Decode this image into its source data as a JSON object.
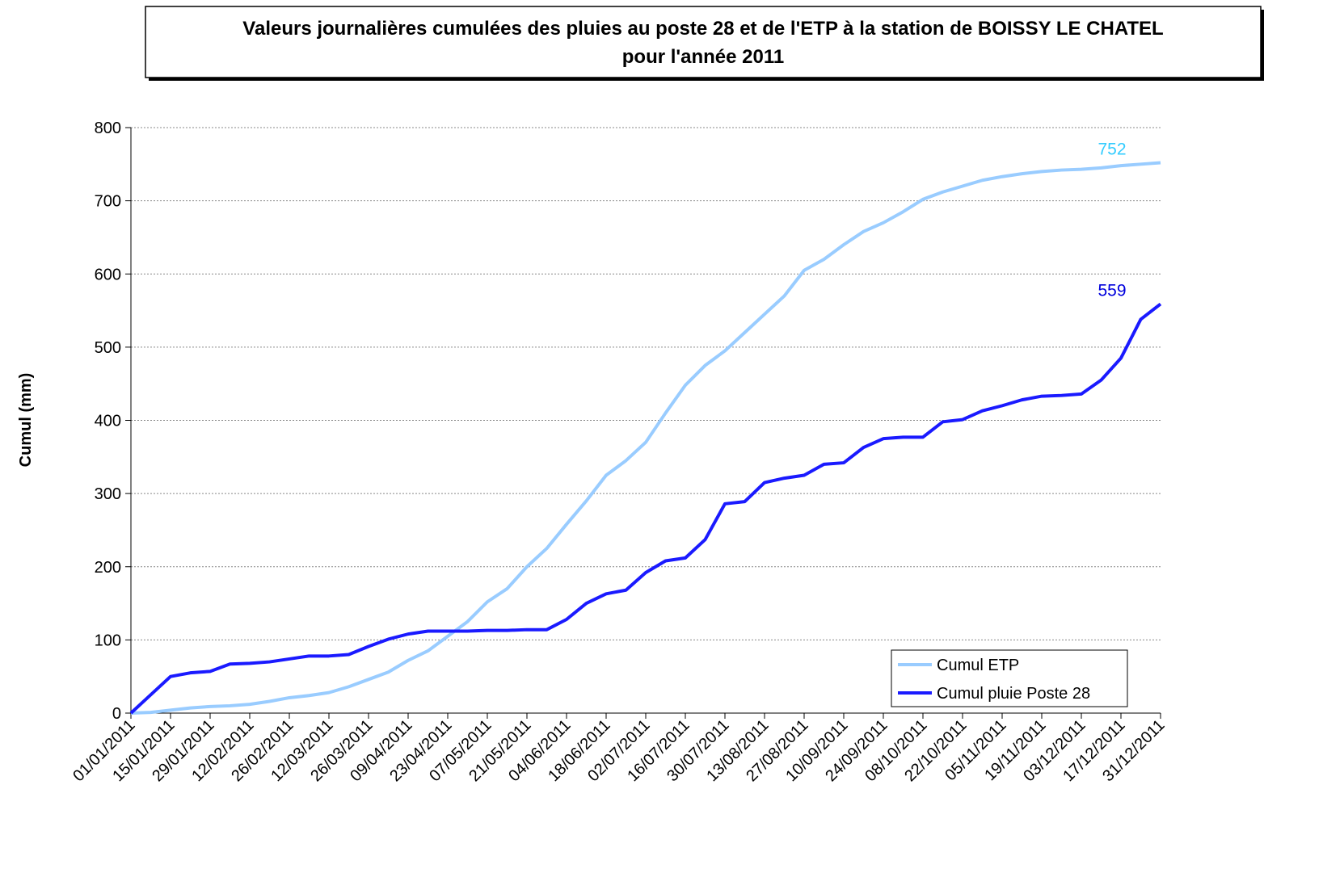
{
  "chart_data": {
    "type": "line",
    "title": [
      "Valeurs journalières cumulées des pluies au poste 28 et de l'ETP à la station de BOISSY LE CHATEL",
      "pour l'année 2011"
    ],
    "y_label": "Cumul (mm)",
    "x": [
      "01/01/2011",
      "08/01/2011",
      "15/01/2011",
      "22/01/2011",
      "29/01/2011",
      "05/02/2011",
      "12/02/2011",
      "19/02/2011",
      "26/02/2011",
      "05/03/2011",
      "12/03/2011",
      "19/03/2011",
      "26/03/2011",
      "02/04/2011",
      "09/04/2011",
      "16/04/2011",
      "23/04/2011",
      "30/04/2011",
      "07/05/2011",
      "14/05/2011",
      "21/05/2011",
      "28/05/2011",
      "04/06/2011",
      "11/06/2011",
      "18/06/2011",
      "25/06/2011",
      "02/07/2011",
      "09/07/2011",
      "16/07/2011",
      "23/07/2011",
      "30/07/2011",
      "06/08/2011",
      "13/08/2011",
      "20/08/2011",
      "27/08/2011",
      "03/09/2011",
      "10/09/2011",
      "17/09/2011",
      "24/09/2011",
      "01/10/2011",
      "08/10/2011",
      "15/10/2011",
      "22/10/2011",
      "29/10/2011",
      "05/11/2011",
      "12/11/2011",
      "19/11/2011",
      "26/11/2011",
      "03/12/2011",
      "10/12/2011",
      "17/12/2011",
      "24/12/2011",
      "31/12/2011"
    ],
    "xticks": [
      "01/01/2011",
      "15/01/2011",
      "29/01/2011",
      "12/02/2011",
      "26/02/2011",
      "12/03/2011",
      "26/03/2011",
      "09/04/2011",
      "23/04/2011",
      "07/05/2011",
      "21/05/2011",
      "04/06/2011",
      "18/06/2011",
      "02/07/2011",
      "16/07/2011",
      "30/07/2011",
      "13/08/2011",
      "27/08/2011",
      "10/09/2011",
      "24/09/2011",
      "08/10/2011",
      "22/10/2011",
      "05/11/2011",
      "19/11/2011",
      "03/12/2011",
      "17/12/2011",
      "31/12/2011"
    ],
    "series": [
      {
        "name": "Cumul ETP",
        "color": "#99ccff",
        "label_color": "#33ccff",
        "values": [
          0,
          1,
          4,
          7,
          9,
          10,
          12,
          16,
          21,
          24,
          28,
          36,
          46,
          56,
          72,
          85,
          105,
          125,
          152,
          170,
          200,
          225,
          258,
          290,
          325,
          345,
          370,
          410,
          448,
          475,
          495,
          520,
          545,
          570,
          605,
          620,
          640,
          658,
          670,
          685,
          702,
          712,
          720,
          728,
          733,
          737,
          740,
          742,
          743,
          745,
          748,
          750,
          752
        ]
      },
      {
        "name": "Cumul pluie Poste 28",
        "color": "#1a1aff",
        "label_color": "#0000dd",
        "values": [
          0,
          25,
          50,
          55,
          57,
          67,
          68,
          70,
          74,
          78,
          78,
          80,
          91,
          101,
          108,
          112,
          112,
          112,
          113,
          113,
          114,
          114,
          128,
          150,
          163,
          168,
          192,
          208,
          212,
          237,
          286,
          289,
          315,
          321,
          325,
          340,
          342,
          363,
          375,
          377,
          377,
          398,
          401,
          413,
          420,
          428,
          433,
          434,
          436,
          455,
          485,
          538,
          559
        ]
      }
    ],
    "ylim": [
      0,
      800
    ],
    "yticks": [
      0,
      100,
      200,
      300,
      400,
      500,
      600,
      700,
      800
    ],
    "grid": true,
    "legend": "lower right"
  }
}
